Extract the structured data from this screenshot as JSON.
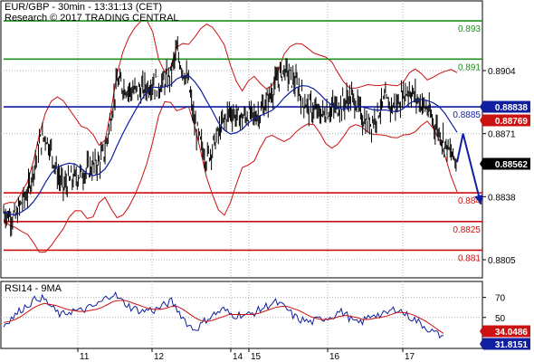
{
  "chart_data": {
    "type": "line",
    "title": "EUR/GBP - 30min - 13:31:13 (CET)",
    "subtitle": "Research © 2017 TRADING CENTRAL",
    "price_axis": {
      "ticks": [
        "0.8904",
        "0.8871",
        "0.8838",
        "0.8805"
      ],
      "ylim": [
        0.8796,
        0.894
      ]
    },
    "date_ticks": [
      "11",
      "12",
      "14",
      "15",
      "16",
      "17"
    ],
    "levels": [
      {
        "name": "resistance-2",
        "value": 0.893,
        "label": "0.893",
        "color": "#1f8f1f"
      },
      {
        "name": "resistance-1",
        "value": 0.891,
        "label": "0.891",
        "color": "#1f8f1f"
      },
      {
        "name": "pivot",
        "value": 0.8885,
        "label": "0.8885",
        "color": "#0f1f9f"
      },
      {
        "name": "support-1",
        "value": 0.884,
        "label": "0.884",
        "color": "#cc1111"
      },
      {
        "name": "support-2",
        "value": 0.8825,
        "label": "0.8825",
        "color": "#cc1111"
      },
      {
        "name": "support-3",
        "value": 0.881,
        "label": "0.881",
        "color": "#cc1111"
      }
    ],
    "badges": [
      {
        "name": "upper-band-badge",
        "value": 0.88838,
        "label": "0.88838",
        "bg": "#0f1f9f",
        "fg": "#ffffff"
      },
      {
        "name": "lower-band-badge",
        "value": 0.88769,
        "label": "0.88769",
        "bg": "#cc1111",
        "fg": "#ffffff"
      },
      {
        "name": "last-price-badge",
        "value": 0.88562,
        "label": "0.88562",
        "bg": "#000000",
        "fg": "#ffffff"
      }
    ],
    "price_series": [
      0.883,
      0.8828,
      0.8827,
      0.8835,
      0.884,
      0.8852,
      0.8866,
      0.887,
      0.8862,
      0.885,
      0.8843,
      0.8846,
      0.8848,
      0.885,
      0.8852,
      0.8854,
      0.8856,
      0.8862,
      0.888,
      0.8898,
      0.8896,
      0.8894,
      0.8893,
      0.8894,
      0.8895,
      0.8898,
      0.8896,
      0.8898,
      0.8902,
      0.8914,
      0.8905,
      0.8897,
      0.8876,
      0.8866,
      0.8858,
      0.8864,
      0.8871,
      0.8878,
      0.8883,
      0.888,
      0.8879,
      0.8881,
      0.888,
      0.8882,
      0.8887,
      0.8893,
      0.89,
      0.8905,
      0.8901,
      0.8897,
      0.889,
      0.8885,
      0.8883,
      0.8881,
      0.8882,
      0.8884,
      0.8885,
      0.8887,
      0.889,
      0.8888,
      0.888,
      0.8876,
      0.8878,
      0.8884,
      0.8888,
      0.8885,
      0.8886,
      0.8892,
      0.8894,
      0.889,
      0.8887,
      0.8884,
      0.8877,
      0.8872,
      0.8866,
      0.886,
      0.8856
    ],
    "arrow": {
      "from": [
        77,
        0.8871
      ],
      "to": [
        80,
        0.8834
      ]
    },
    "rsi": {
      "title": "RSI14 - 9MA",
      "ticks": [
        "70",
        "50"
      ],
      "ylim": [
        20,
        85
      ],
      "badges": [
        {
          "name": "rsi-ma-badge",
          "value": 34.0486,
          "label": "34.0486",
          "bg": "#cc1111",
          "fg": "#ffffff"
        },
        {
          "name": "rsi-value-badge",
          "value": 31.8151,
          "label": "31.8151",
          "bg": "#0f1f9f",
          "fg": "#ffffff"
        }
      ],
      "rsi_series": [
        42,
        48,
        52,
        58,
        62,
        66,
        70,
        68,
        62,
        56,
        52,
        55,
        57,
        56,
        58,
        60,
        62,
        66,
        71,
        74,
        68,
        64,
        60,
        58,
        56,
        58,
        57,
        60,
        63,
        66,
        58,
        50,
        42,
        38,
        42,
        48,
        52,
        55,
        58,
        54,
        52,
        53,
        52,
        54,
        57,
        60,
        63,
        65,
        62,
        58,
        52,
        48,
        47,
        45,
        47,
        49,
        50,
        52,
        56,
        54,
        48,
        44,
        46,
        50,
        54,
        52,
        53,
        57,
        59,
        55,
        51,
        48,
        44,
        40,
        36,
        33,
        31.8
      ],
      "ma_series": [
        45,
        46,
        48,
        51,
        55,
        59,
        62,
        64,
        63,
        62,
        60,
        58,
        57,
        56,
        56,
        57,
        58,
        60,
        63,
        66,
        67,
        67,
        65,
        63,
        61,
        59,
        58,
        58,
        59,
        61,
        61,
        58,
        54,
        50,
        47,
        46,
        47,
        49,
        51,
        53,
        53,
        53,
        53,
        53,
        54,
        56,
        58,
        60,
        61,
        61,
        59,
        57,
        54,
        51,
        49,
        48,
        48,
        49,
        51,
        52,
        51,
        50,
        48,
        48,
        49,
        50,
        51,
        53,
        55,
        55,
        54,
        52,
        49,
        46,
        42,
        38,
        34.05
      ]
    }
  }
}
